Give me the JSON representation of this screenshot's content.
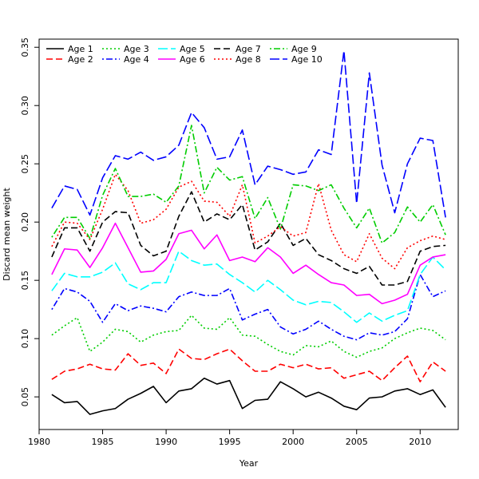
{
  "chart_data": {
    "type": "line",
    "title": "",
    "xlabel": "Year",
    "ylabel": "Discard mean weight",
    "xlim": [
      1980,
      2013
    ],
    "ylim": [
      0.022,
      0.357
    ],
    "xticks": [
      1980,
      1985,
      1990,
      1995,
      2000,
      2005,
      2010
    ],
    "yticks": [
      0.05,
      0.1,
      0.15,
      0.2,
      0.25,
      0.3,
      0.35
    ],
    "xtick_labels": [
      "1980",
      "1985",
      "1990",
      "1995",
      "2000",
      "2005",
      "2010"
    ],
    "ytick_labels": [
      "0.05",
      "0.10",
      "0.15",
      "0.20",
      "0.25",
      "0.30",
      "0.35"
    ],
    "legend_position": "top-left",
    "years": [
      1981,
      1982,
      1983,
      1984,
      1985,
      1986,
      1987,
      1988,
      1989,
      1990,
      1991,
      1992,
      1993,
      1994,
      1995,
      1996,
      1997,
      1998,
      1999,
      2000,
      2001,
      2002,
      2003,
      2004,
      2005,
      2006,
      2007,
      2008,
      2009,
      2010,
      2011,
      2012
    ],
    "series": [
      {
        "name": "Age 1",
        "color": "#000000",
        "dash": "solid",
        "values": [
          0.052,
          0.045,
          0.046,
          0.035,
          0.038,
          0.04,
          0.048,
          0.053,
          0.059,
          0.045,
          0.055,
          0.057,
          0.066,
          0.061,
          0.064,
          0.04,
          0.047,
          0.048,
          0.063,
          0.057,
          0.05,
          0.054,
          0.049,
          0.042,
          0.039,
          0.049,
          0.05,
          0.055,
          0.057,
          0.052,
          0.056,
          0.041
        ]
      },
      {
        "name": "Age 2",
        "color": "#ff0000",
        "dash": "dashed",
        "values": [
          0.065,
          0.072,
          0.074,
          0.078,
          0.074,
          0.073,
          0.087,
          0.077,
          0.079,
          0.07,
          0.091,
          0.083,
          0.082,
          0.087,
          0.091,
          0.081,
          0.072,
          0.072,
          0.078,
          0.075,
          0.078,
          0.074,
          0.075,
          0.066,
          0.069,
          0.072,
          0.064,
          0.075,
          0.085,
          0.063,
          0.08,
          0.072
        ]
      },
      {
        "name": "Age 3",
        "color": "#00cd00",
        "dash": "dotted",
        "values": [
          0.103,
          0.111,
          0.118,
          0.089,
          0.097,
          0.108,
          0.106,
          0.097,
          0.103,
          0.106,
          0.107,
          0.12,
          0.109,
          0.108,
          0.118,
          0.103,
          0.102,
          0.095,
          0.089,
          0.086,
          0.094,
          0.093,
          0.098,
          0.089,
          0.084,
          0.089,
          0.092,
          0.1,
          0.105,
          0.109,
          0.107,
          0.099
        ]
      },
      {
        "name": "Age 4",
        "color": "#0000ff",
        "dash": "dotdash",
        "values": [
          0.125,
          0.143,
          0.14,
          0.132,
          0.114,
          0.13,
          0.124,
          0.128,
          0.126,
          0.123,
          0.136,
          0.14,
          0.137,
          0.137,
          0.143,
          0.116,
          0.121,
          0.125,
          0.11,
          0.104,
          0.108,
          0.115,
          0.108,
          0.102,
          0.099,
          0.105,
          0.103,
          0.106,
          0.117,
          0.155,
          0.136,
          0.141
        ]
      },
      {
        "name": "Age 5",
        "color": "#00ffff",
        "dash": "longdash",
        "values": [
          0.141,
          0.156,
          0.153,
          0.153,
          0.157,
          0.165,
          0.147,
          0.142,
          0.148,
          0.148,
          0.175,
          0.167,
          0.163,
          0.164,
          0.155,
          0.148,
          0.14,
          0.15,
          0.142,
          0.133,
          0.129,
          0.132,
          0.131,
          0.123,
          0.114,
          0.122,
          0.115,
          0.12,
          0.124,
          0.155,
          0.17,
          0.159
        ]
      },
      {
        "name": "Age 6",
        "color": "#ff00ff",
        "dash": "solid",
        "values": [
          0.155,
          0.177,
          0.176,
          0.161,
          0.178,
          0.199,
          0.178,
          0.157,
          0.158,
          0.168,
          0.19,
          0.193,
          0.177,
          0.189,
          0.167,
          0.17,
          0.166,
          0.178,
          0.17,
          0.156,
          0.163,
          0.155,
          0.148,
          0.146,
          0.137,
          0.138,
          0.13,
          0.133,
          0.138,
          0.163,
          0.17,
          0.172
        ]
      },
      {
        "name": "Age 7",
        "color": "#000000",
        "dash": "dashed",
        "values": [
          0.17,
          0.195,
          0.195,
          0.175,
          0.2,
          0.209,
          0.208,
          0.18,
          0.171,
          0.175,
          0.205,
          0.226,
          0.2,
          0.207,
          0.202,
          0.215,
          0.176,
          0.183,
          0.199,
          0.18,
          0.186,
          0.172,
          0.167,
          0.16,
          0.156,
          0.162,
          0.146,
          0.146,
          0.149,
          0.175,
          0.179,
          0.18
        ]
      },
      {
        "name": "Age 8",
        "color": "#ff0000",
        "dash": "dotted",
        "values": [
          0.179,
          0.2,
          0.199,
          0.185,
          0.211,
          0.241,
          0.227,
          0.199,
          0.202,
          0.211,
          0.23,
          0.235,
          0.218,
          0.217,
          0.205,
          0.232,
          0.182,
          0.188,
          0.196,
          0.188,
          0.191,
          0.233,
          0.193,
          0.172,
          0.166,
          0.19,
          0.169,
          0.16,
          0.178,
          0.184,
          0.188,
          0.185
        ]
      },
      {
        "name": "Age 9",
        "color": "#00cd00",
        "dash": "dotdash",
        "values": [
          0.187,
          0.204,
          0.204,
          0.186,
          0.223,
          0.246,
          0.222,
          0.222,
          0.224,
          0.217,
          0.231,
          0.283,
          0.225,
          0.247,
          0.236,
          0.239,
          0.203,
          0.221,
          0.194,
          0.232,
          0.231,
          0.227,
          0.232,
          0.212,
          0.195,
          0.212,
          0.182,
          0.191,
          0.213,
          0.2,
          0.215,
          0.189
        ]
      },
      {
        "name": "Age 10",
        "color": "#0000ff",
        "dash": "longdash",
        "values": [
          0.212,
          0.231,
          0.228,
          0.206,
          0.238,
          0.257,
          0.254,
          0.26,
          0.253,
          0.256,
          0.266,
          0.294,
          0.281,
          0.254,
          0.256,
          0.279,
          0.232,
          0.248,
          0.245,
          0.241,
          0.243,
          0.262,
          0.258,
          0.347,
          0.216,
          0.328,
          0.249,
          0.208,
          0.25,
          0.272,
          0.27,
          0.204
        ]
      }
    ]
  }
}
